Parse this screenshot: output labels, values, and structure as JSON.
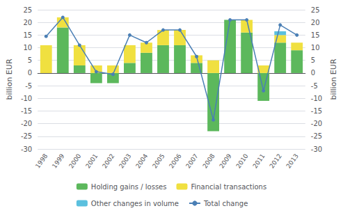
{
  "chart_data": {
    "type": "bar",
    "categories": [
      "1998",
      "1999",
      "2000",
      "2001",
      "2002",
      "2003",
      "2004",
      "2005",
      "2006",
      "2007",
      "2008",
      "2009",
      "2010",
      "2011",
      "2012",
      "2013"
    ],
    "series": [
      {
        "name": "Holding gains / losses",
        "type": "bar",
        "color": "#5cb85c",
        "values": [
          0,
          18,
          3,
          -4,
          -4,
          4,
          8,
          11,
          11,
          4,
          -23,
          21,
          16,
          -11,
          12,
          9
        ]
      },
      {
        "name": "Financial transactions",
        "type": "bar",
        "color": "#f0e040",
        "values": [
          11,
          4,
          8,
          3,
          3,
          7,
          4,
          6,
          6,
          3,
          5,
          0,
          5,
          3,
          3,
          3
        ]
      },
      {
        "name": "Other changes in volume",
        "type": "bar",
        "color": "#5bc0de",
        "values": [
          0,
          0,
          0,
          0,
          0,
          0,
          0,
          0,
          0,
          0,
          0,
          0,
          0,
          0,
          1.5,
          0
        ]
      },
      {
        "name": "Total change",
        "type": "line",
        "color": "#4a7fb5",
        "marker": "circle",
        "values": [
          14.5,
          22,
          11,
          0.5,
          -0.5,
          15,
          12,
          17,
          17,
          6.5,
          -18.5,
          21,
          21,
          -7,
          19,
          15
        ]
      }
    ],
    "ylabel": "billion EUR",
    "y2label": "billion EUR",
    "ylim": [
      -30,
      25
    ],
    "yticks": [
      -30,
      -25,
      -20,
      -15,
      -10,
      -5,
      0,
      5,
      10,
      15,
      20,
      25
    ],
    "y2lim": [
      -30,
      25
    ],
    "y2ticks": [
      -30,
      -25,
      -20,
      -15,
      -10,
      -5,
      0,
      5,
      10,
      15,
      20,
      25
    ],
    "stacked": true,
    "grid": true,
    "legend": "bottom"
  }
}
